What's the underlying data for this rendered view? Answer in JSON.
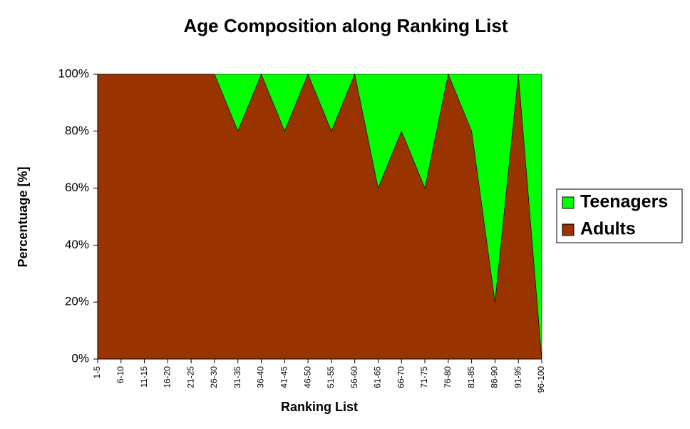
{
  "chart_data": {
    "type": "stacked_area_100",
    "title": "Age Composition along Ranking List",
    "x_label": "Ranking List",
    "y_label": "Percentuage [%]",
    "categories": [
      "1-5",
      "6-10",
      "11-15",
      "16-20",
      "21-25",
      "26-30",
      "31-35",
      "36-40",
      "41-45",
      "46-50",
      "51-55",
      "56-60",
      "61-65",
      "66-70",
      "71-75",
      "76-80",
      "81-85",
      "86-90",
      "91-95",
      "96-100"
    ],
    "series": [
      {
        "name": "Adults",
        "color": "#993300",
        "values": [
          100,
          100,
          100,
          100,
          100,
          100,
          80,
          100,
          80,
          100,
          80,
          100,
          60,
          80,
          60,
          100,
          80,
          20,
          100,
          0
        ]
      },
      {
        "name": "Teenagers",
        "color": "#00ff00",
        "values": [
          0,
          0,
          0,
          0,
          0,
          0,
          20,
          0,
          20,
          0,
          20,
          0,
          40,
          20,
          40,
          0,
          20,
          80,
          0,
          100
        ]
      }
    ],
    "ylim": [
      0,
      100
    ],
    "yticks": [
      {
        "value": 0,
        "label": "0%"
      },
      {
        "value": 20,
        "label": "20%"
      },
      {
        "value": 40,
        "label": "40%"
      },
      {
        "value": 60,
        "label": "60%"
      },
      {
        "value": 80,
        "label": "80%"
      },
      {
        "value": 100,
        "label": "100%"
      }
    ],
    "legend": "right"
  }
}
